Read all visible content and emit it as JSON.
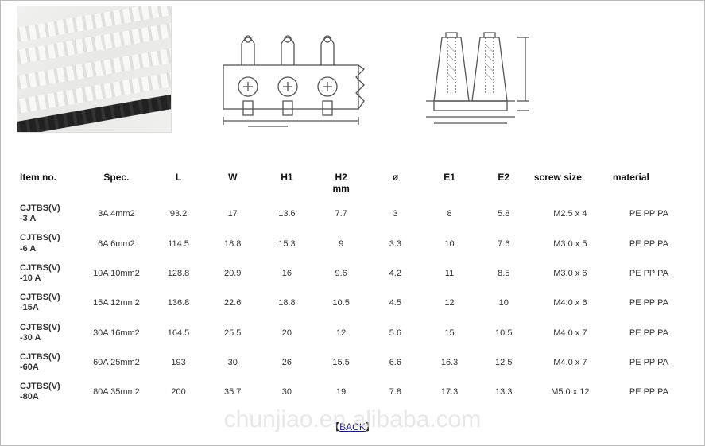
{
  "watermark": "chunjiao.en.alibaba.com",
  "back_label": "BACK",
  "diagram_front": {
    "stroke": "#555555",
    "bg": "#ffffff"
  },
  "diagram_side": {
    "stroke": "#555555",
    "bg": "#ffffff"
  },
  "table": {
    "headers": {
      "item": "Item no.",
      "spec": "Spec.",
      "L": "L",
      "W": "W",
      "H1": "H1",
      "H2": "H2\nmm",
      "dia": "ø",
      "E1": "E1",
      "E2": "E2",
      "screw": "screw size",
      "material": "material"
    },
    "rows": [
      {
        "item": "CJTBS(V)\n-3 A",
        "spec": "3A 4mm2",
        "L": "93.2",
        "W": "17",
        "H1": "13.6",
        "H2": "7.7",
        "dia": "3",
        "E1": "8",
        "E2": "5.8",
        "screw": "M2.5 x 4",
        "material": "PE PP PA"
      },
      {
        "item": "CJTBS(V)\n-6 A",
        "spec": "6A 6mm2",
        "L": "114.5",
        "W": "18.8",
        "H1": "15.3",
        "H2": "9",
        "dia": "3.3",
        "E1": "10",
        "E2": "7.6",
        "screw": "M3.0 x 5",
        "material": "PE PP PA"
      },
      {
        "item": "CJTBS(V)\n-10 A",
        "spec": "10A 10mm2",
        "L": "128.8",
        "W": "20.9",
        "H1": "16",
        "H2": "9.6",
        "dia": "4.2",
        "E1": "11",
        "E2": "8.5",
        "screw": "M3.0 x 6",
        "material": "PE PP PA"
      },
      {
        "item": "CJTBS(V)\n-15A",
        "spec": "15A 12mm2",
        "L": "136.8",
        "W": "22.6",
        "H1": "18.8",
        "H2": "10.5",
        "dia": "4.5",
        "E1": "12",
        "E2": "10",
        "screw": "M4.0 x 6",
        "material": "PE PP PA"
      },
      {
        "item": "CJTBS(V)\n-30 A",
        "spec": "30A 16mm2",
        "L": "164.5",
        "W": "25.5",
        "H1": "20",
        "H2": "12",
        "dia": "5.6",
        "E1": "15",
        "E2": "10.5",
        "screw": "M4.0 x 7",
        "material": "PE PP PA"
      },
      {
        "item": "CJTBS(V)\n-60A",
        "spec": "60A 25mm2",
        "L": "193",
        "W": "30",
        "H1": "26",
        "H2": "15.5",
        "dia": "6.6",
        "E1": "16.3",
        "E2": "12.5",
        "screw": "M4.0 x 7",
        "material": "PE PP PA"
      },
      {
        "item": "CJTBS(V)\n-80A",
        "spec": "80A 35mm2",
        "L": "200",
        "W": "35.7",
        "H1": "30",
        "H2": "19",
        "dia": "7.8",
        "E1": "17.3",
        "E2": "13.3",
        "screw": "M5.0 x 12",
        "material": "PE PP PA"
      }
    ]
  }
}
